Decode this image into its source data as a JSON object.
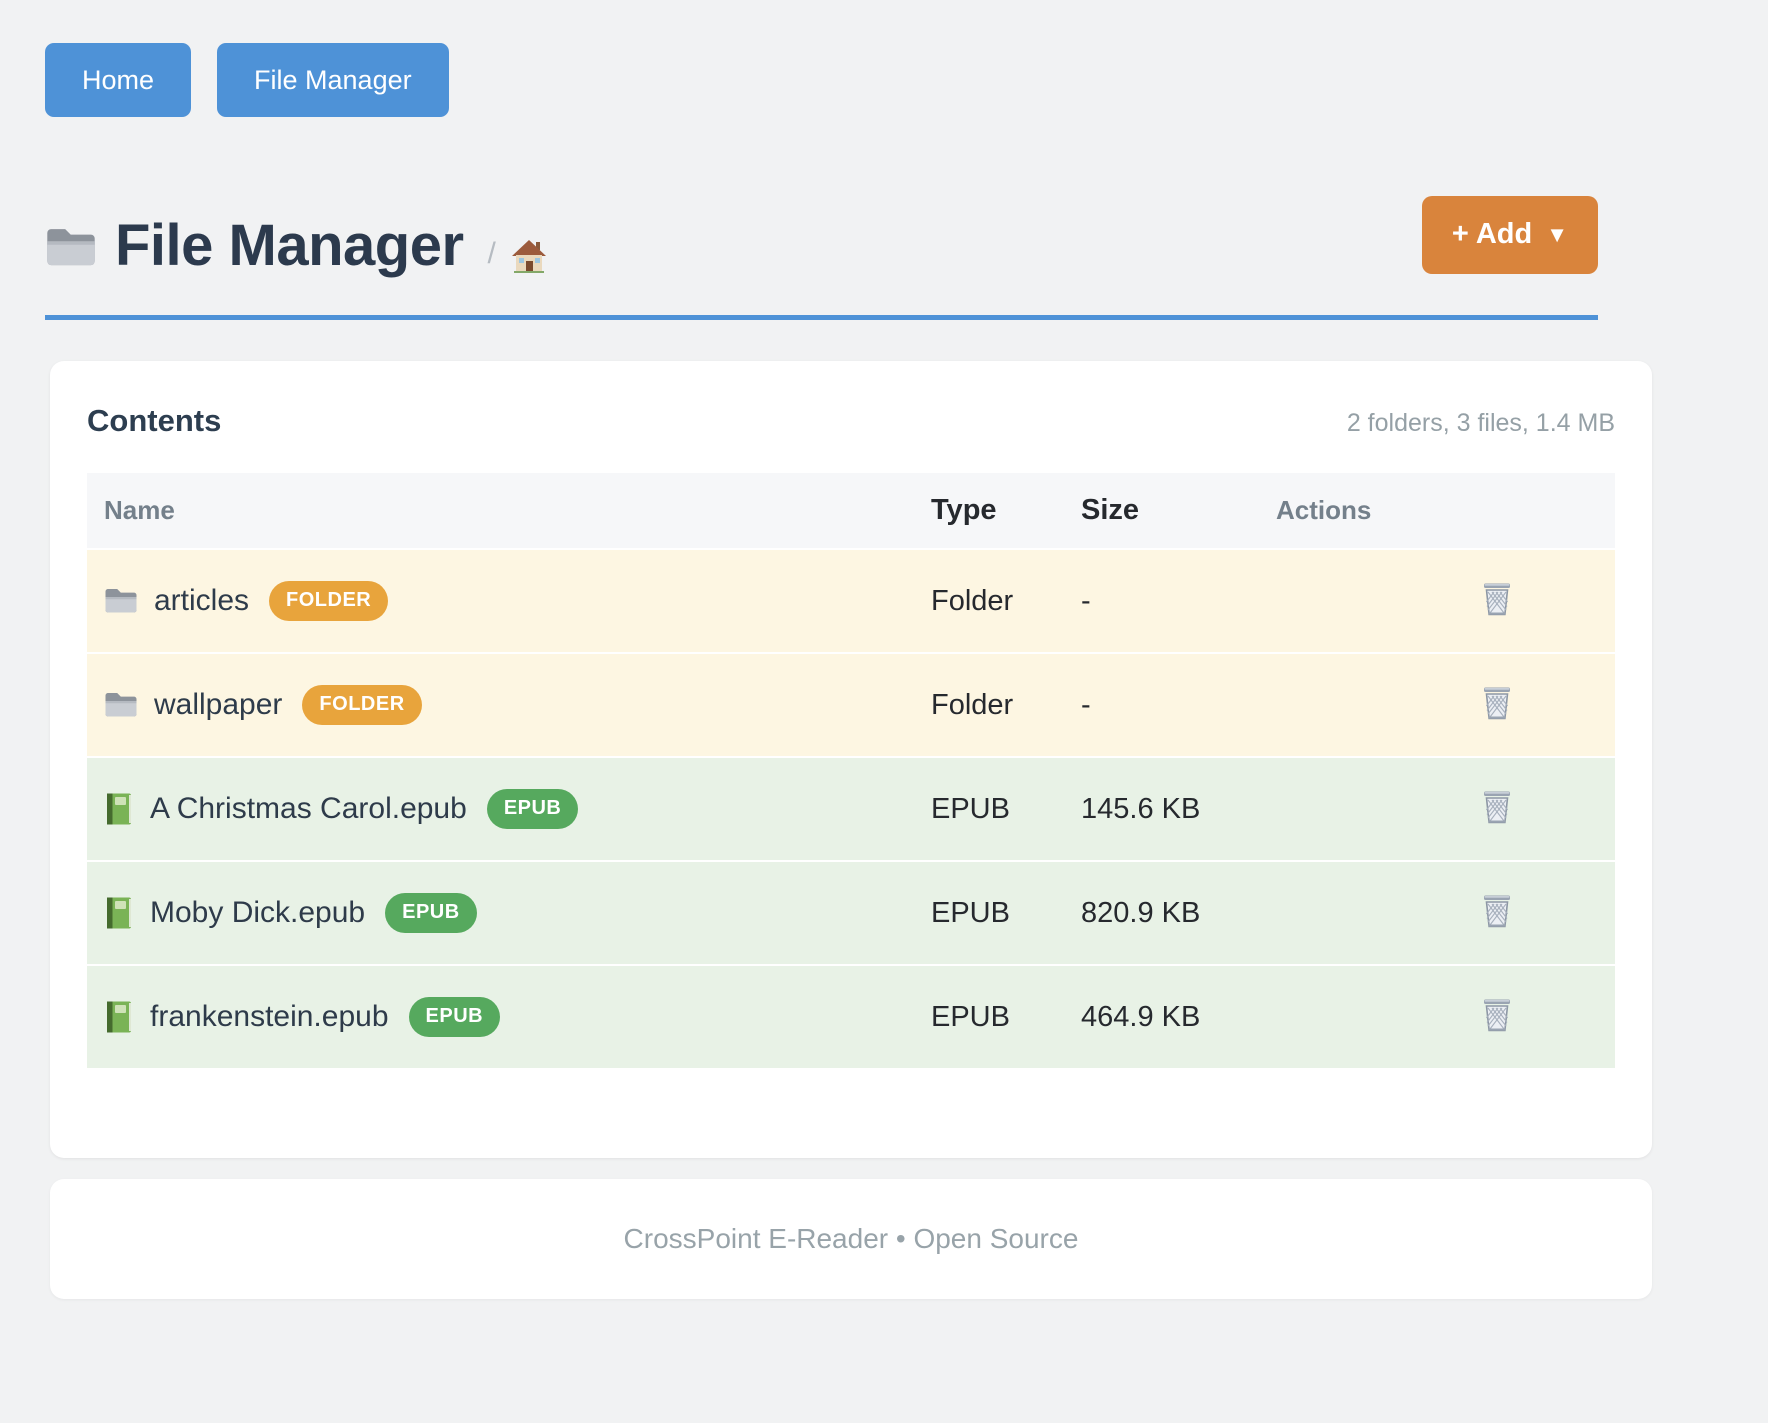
{
  "nav": {
    "items": [
      {
        "label": "Home"
      },
      {
        "label": "File Manager"
      }
    ]
  },
  "header": {
    "title_icon": "folder-icon",
    "title": "File Manager",
    "breadcrumb_separator": "/",
    "home_icon": "house-icon",
    "add_button_label": "+ Add",
    "add_button_caret": "▼"
  },
  "contents": {
    "heading": "Contents",
    "summary": "2 folders, 3 files, 1.4 MB",
    "columns": [
      "Name",
      "Type",
      "Size",
      "Actions"
    ],
    "rows": [
      {
        "icon": "folder-icon",
        "name": "articles",
        "badge": "FOLDER",
        "kind": "folder",
        "type": "Folder",
        "size": "-",
        "action_icon": "wastebasket-icon"
      },
      {
        "icon": "folder-icon",
        "name": "wallpaper",
        "badge": "FOLDER",
        "kind": "folder",
        "type": "Folder",
        "size": "-",
        "action_icon": "wastebasket-icon"
      },
      {
        "icon": "book-icon",
        "name": "A Christmas Carol.epub",
        "badge": "EPUB",
        "kind": "epub",
        "type": "EPUB",
        "size": "145.6 KB",
        "action_icon": "wastebasket-icon"
      },
      {
        "icon": "book-icon",
        "name": "Moby Dick.epub",
        "badge": "EPUB",
        "kind": "epub",
        "type": "EPUB",
        "size": "820.9 KB",
        "action_icon": "wastebasket-icon"
      },
      {
        "icon": "book-icon",
        "name": "frankenstein.epub",
        "badge": "EPUB",
        "kind": "epub",
        "type": "EPUB",
        "size": "464.9 KB",
        "action_icon": "wastebasket-icon"
      }
    ]
  },
  "footer": {
    "text": "CrossPoint E-Reader • Open Source"
  },
  "colors": {
    "page_bg": "#f1f2f3",
    "accent_blue": "#4e92d7",
    "accent_orange": "#d9843c",
    "folder_badge_bg": "#e8a43c",
    "epub_badge_bg": "#56a95e",
    "folder_row_bg": "#fdf6e2",
    "epub_row_bg": "#e8f2e6",
    "table_header_bg": "#f6f7f9"
  }
}
